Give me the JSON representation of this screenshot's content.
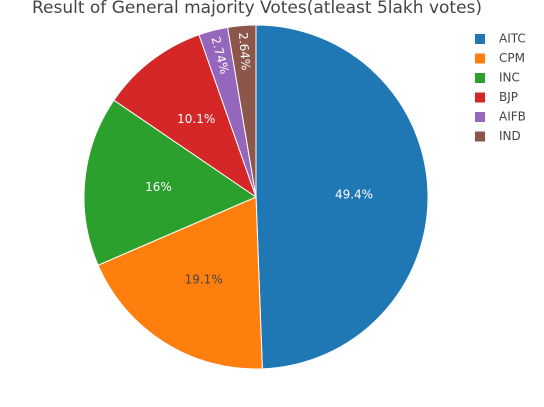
{
  "chart_data": {
    "type": "pie",
    "title": "Result of General majority Votes(atleast 5lakh votes)",
    "categories": [
      "AITC",
      "CPM",
      "INC",
      "BJP",
      "AIFB",
      "IND"
    ],
    "values": [
      49.4,
      19.1,
      16,
      10.1,
      2.74,
      2.64
    ],
    "value_labels": [
      "49.4%",
      "19.1%",
      "16%",
      "10.1%",
      "2.74%",
      "2.64%"
    ],
    "colors": [
      "#1f77b4",
      "#ff7f0e",
      "#2ca02c",
      "#d62728",
      "#9467bd",
      "#8c564b"
    ],
    "direction": "clockwise",
    "legend_position": "top-right"
  }
}
